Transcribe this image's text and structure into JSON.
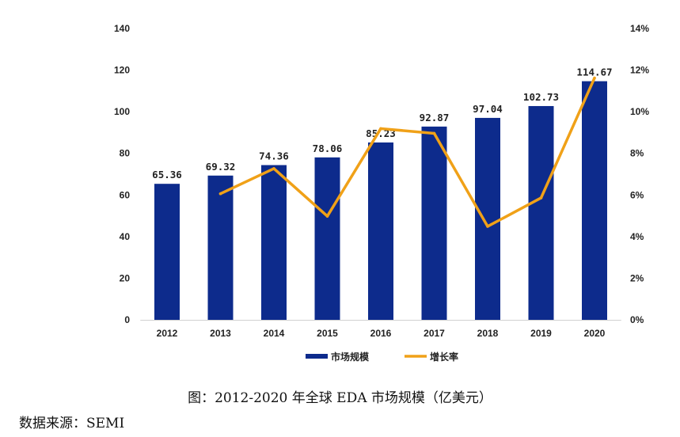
{
  "chart_data": {
    "type": "bar",
    "categories": [
      "2012",
      "2013",
      "2014",
      "2015",
      "2016",
      "2017",
      "2018",
      "2019",
      "2020"
    ],
    "series": [
      {
        "name": "市场规模",
        "type": "bar",
        "axis": "left",
        "color": "#0d2b8c",
        "values": [
          65.36,
          69.32,
          74.36,
          78.06,
          85.23,
          92.87,
          97.04,
          102.73,
          114.67
        ],
        "labels": [
          "65.36",
          "69.32",
          "74.36",
          "78.06",
          "85.23",
          "92.87",
          "97.04",
          "102.73",
          "114.67"
        ]
      },
      {
        "name": "增长率",
        "type": "line",
        "axis": "right",
        "color": "#f0a118",
        "values": [
          null,
          6.06,
          7.27,
          4.98,
          9.19,
          8.96,
          4.49,
          5.86,
          11.62
        ]
      }
    ],
    "y_left": {
      "min": 0,
      "max": 140,
      "ticks": [
        "0",
        "20",
        "40",
        "60",
        "80",
        "100",
        "120",
        "140"
      ]
    },
    "y_right": {
      "min": 0,
      "max": 14,
      "ticks": [
        "0%",
        "2%",
        "4%",
        "6%",
        "8%",
        "10%",
        "12%",
        "14%"
      ]
    },
    "legend": {
      "position": "bottom"
    },
    "grid": false
  },
  "caption": "图：2012-2020 年全球 EDA 市场规模（亿美元）",
  "source": "数据来源：SEMI"
}
